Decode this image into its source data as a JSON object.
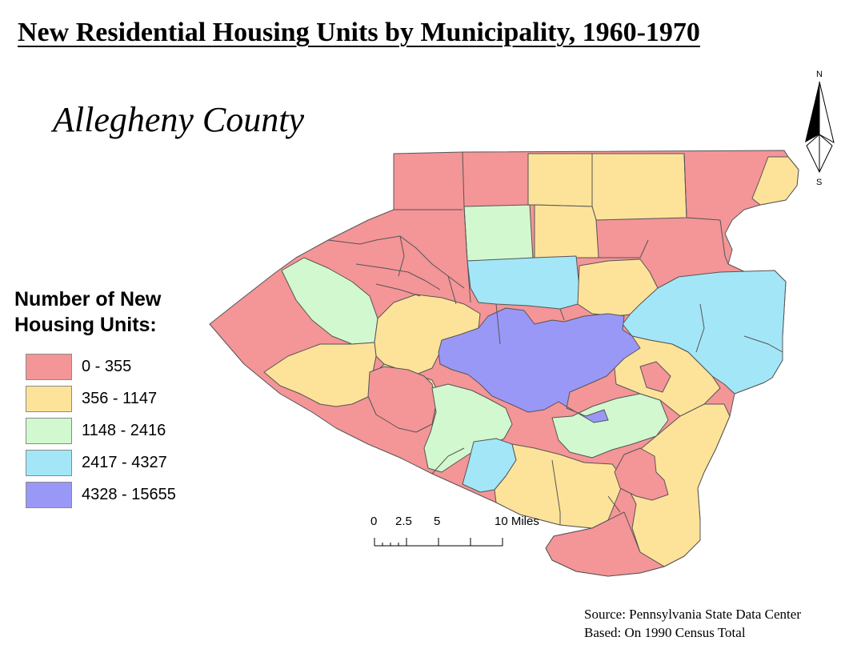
{
  "title": "New Residential Housing Units by Municipality, 1960-1970",
  "county_label": "Allegheny County",
  "legend": {
    "title_line1": "Number of New",
    "title_line2": "Housing Units:",
    "classes": [
      {
        "label": "0 - 355",
        "color": "#f49597"
      },
      {
        "label": "356 - 1147",
        "color": "#fde39a"
      },
      {
        "label": "1148 - 2416",
        "color": "#d2f8cf"
      },
      {
        "label": "2417 - 4327",
        "color": "#a3e6f8"
      },
      {
        "label": "4328 - 15655",
        "color": "#9a98f6"
      }
    ]
  },
  "scale_bar": {
    "labels": [
      "0",
      "2.5",
      "5",
      "10 Miles"
    ]
  },
  "north_arrow": {
    "top_label": "N",
    "bottom_label": "S"
  },
  "source": {
    "line1": "Source: Pennsylvania State Data Center",
    "line2": "Based: On 1990 Census Total"
  }
}
